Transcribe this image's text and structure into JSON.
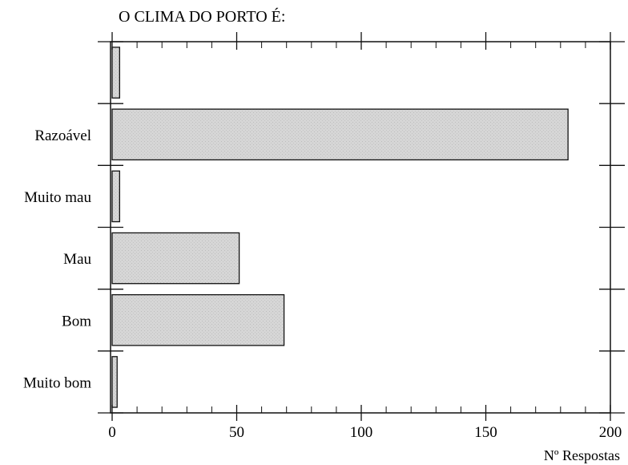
{
  "chart_data": {
    "type": "bar",
    "orientation": "horizontal",
    "title": "O CLIMA DO PORTO É:",
    "xlabel": "Nº Respostas",
    "ylabel": "",
    "xlim": [
      0,
      200
    ],
    "xticks": [
      "0",
      "50",
      "100",
      "150",
      "200"
    ],
    "categories": [
      "",
      "Razoável",
      "Muito mau",
      "Mau",
      "Bom",
      "Muito bom"
    ],
    "values": [
      3,
      183,
      3,
      51,
      69,
      2
    ],
    "bar_color": "#d3d3d3",
    "grid": false
  }
}
